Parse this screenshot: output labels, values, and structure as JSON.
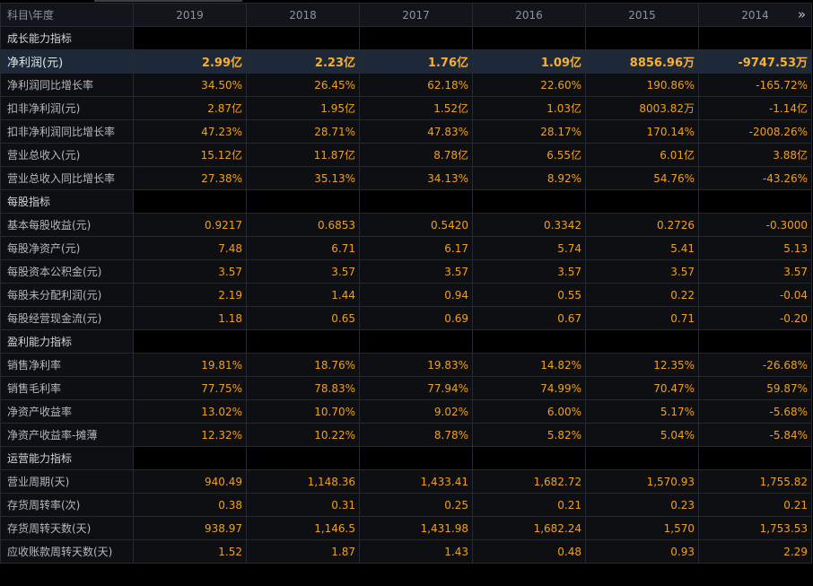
{
  "header": {
    "label": "科目\\年度",
    "years": [
      "2019",
      "2018",
      "2017",
      "2016",
      "2015",
      "2014"
    ],
    "more_icon": "double-chevron-right-icon"
  },
  "colors": {
    "value": "#f0a020",
    "label": "#b4b8bf",
    "highlight_row": "#1d2838",
    "grid": "#252a32"
  },
  "rows": [
    {
      "type": "section",
      "label": "成长能力指标"
    },
    {
      "type": "highlight",
      "label": "净利润(元)",
      "values": [
        "2.99亿",
        "2.23亿",
        "1.76亿",
        "1.09亿",
        "8856.96万",
        "-9747.53万"
      ]
    },
    {
      "type": "data",
      "label": "净利润同比增长率",
      "values": [
        "34.50%",
        "26.45%",
        "62.18%",
        "22.60%",
        "190.86%",
        "-165.72%"
      ]
    },
    {
      "type": "data",
      "label": "扣非净利润(元)",
      "values": [
        "2.87亿",
        "1.95亿",
        "1.52亿",
        "1.03亿",
        "8003.82万",
        "-1.14亿"
      ]
    },
    {
      "type": "data",
      "label": "扣非净利润同比增长率",
      "values": [
        "47.23%",
        "28.71%",
        "47.83%",
        "28.17%",
        "170.14%",
        "-2008.26%"
      ]
    },
    {
      "type": "data",
      "label": "营业总收入(元)",
      "values": [
        "15.12亿",
        "11.87亿",
        "8.78亿",
        "6.55亿",
        "6.01亿",
        "3.88亿"
      ]
    },
    {
      "type": "data",
      "label": "营业总收入同比增长率",
      "values": [
        "27.38%",
        "35.13%",
        "34.13%",
        "8.92%",
        "54.76%",
        "-43.26%"
      ]
    },
    {
      "type": "section",
      "label": "每股指标"
    },
    {
      "type": "data",
      "label": "基本每股收益(元)",
      "values": [
        "0.9217",
        "0.6853",
        "0.5420",
        "0.3342",
        "0.2726",
        "-0.3000"
      ]
    },
    {
      "type": "data",
      "label": "每股净资产(元)",
      "values": [
        "7.48",
        "6.71",
        "6.17",
        "5.74",
        "5.41",
        "5.13"
      ]
    },
    {
      "type": "data",
      "label": "每股资本公积金(元)",
      "values": [
        "3.57",
        "3.57",
        "3.57",
        "3.57",
        "3.57",
        "3.57"
      ]
    },
    {
      "type": "data",
      "label": "每股未分配利润(元)",
      "values": [
        "2.19",
        "1.44",
        "0.94",
        "0.55",
        "0.22",
        "-0.04"
      ]
    },
    {
      "type": "data",
      "label": "每股经营现金流(元)",
      "values": [
        "1.18",
        "0.65",
        "0.69",
        "0.67",
        "0.71",
        "-0.20"
      ]
    },
    {
      "type": "section",
      "label": "盈利能力指标"
    },
    {
      "type": "data",
      "label": "销售净利率",
      "values": [
        "19.81%",
        "18.76%",
        "19.83%",
        "14.82%",
        "12.35%",
        "-26.68%"
      ]
    },
    {
      "type": "data",
      "label": "销售毛利率",
      "values": [
        "77.75%",
        "78.83%",
        "77.94%",
        "74.99%",
        "70.47%",
        "59.87%"
      ]
    },
    {
      "type": "data",
      "label": "净资产收益率",
      "values": [
        "13.02%",
        "10.70%",
        "9.02%",
        "6.00%",
        "5.17%",
        "-5.68%"
      ]
    },
    {
      "type": "data",
      "label": "净资产收益率-摊薄",
      "values": [
        "12.32%",
        "10.22%",
        "8.78%",
        "5.82%",
        "5.04%",
        "-5.84%"
      ]
    },
    {
      "type": "section",
      "label": "运营能力指标"
    },
    {
      "type": "data",
      "label": "营业周期(天)",
      "values": [
        "940.49",
        "1,148.36",
        "1,433.41",
        "1,682.72",
        "1,570.93",
        "1,755.82"
      ]
    },
    {
      "type": "data",
      "label": "存货周转率(次)",
      "values": [
        "0.38",
        "0.31",
        "0.25",
        "0.21",
        "0.23",
        "0.21"
      ]
    },
    {
      "type": "data",
      "label": "存货周转天数(天)",
      "values": [
        "938.97",
        "1,146.5",
        "1,431.98",
        "1,682.24",
        "1,570",
        "1,753.53"
      ]
    },
    {
      "type": "data",
      "label": "应收账款周转天数(天)",
      "values": [
        "1.52",
        "1.87",
        "1.43",
        "0.48",
        "0.93",
        "2.29"
      ]
    }
  ]
}
